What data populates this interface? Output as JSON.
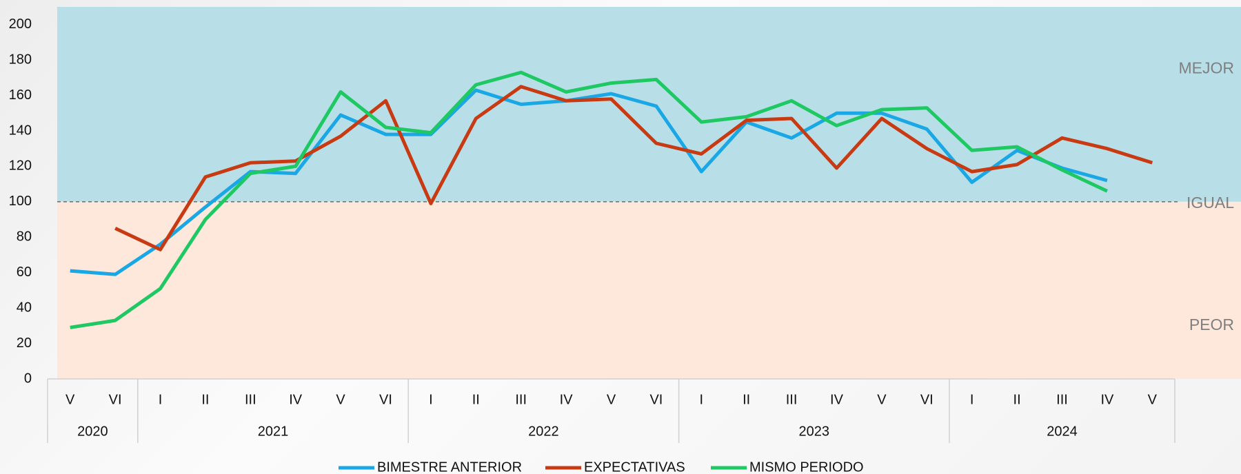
{
  "chart_data": {
    "type": "line",
    "category_groups": [
      {
        "label": "2020",
        "categories": [
          "V",
          "VI"
        ]
      },
      {
        "label": "2021",
        "categories": [
          "I",
          "II",
          "III",
          "IV",
          "V",
          "VI"
        ]
      },
      {
        "label": "2022",
        "categories": [
          "I",
          "II",
          "III",
          "IV",
          "V",
          "VI"
        ]
      },
      {
        "label": "2023",
        "categories": [
          "I",
          "II",
          "III",
          "IV",
          "V",
          "VI"
        ]
      },
      {
        "label": "2024",
        "categories": [
          "I",
          "II",
          "III",
          "IV",
          "V"
        ]
      }
    ],
    "series": [
      {
        "name": "BIMESTRE ANTERIOR",
        "color": "#1aa7e6",
        "values": [
          61,
          59,
          76,
          97,
          117,
          116,
          149,
          138,
          138,
          163,
          155,
          157,
          161,
          154,
          117,
          145,
          136,
          150,
          150,
          141,
          111,
          129,
          119,
          112,
          null
        ]
      },
      {
        "name": "EXPECTATIVAS",
        "color": "#c83a12",
        "values": [
          null,
          85,
          73,
          114,
          122,
          123,
          137,
          157,
          99,
          147,
          165,
          157,
          158,
          133,
          127,
          146,
          147,
          119,
          147,
          130,
          117,
          121,
          136,
          130,
          122
        ]
      },
      {
        "name": "MISMO PERIODO",
        "color": "#1ec862",
        "values": [
          29,
          33,
          51,
          90,
          116,
          120,
          162,
          142,
          139,
          166,
          173,
          162,
          167,
          169,
          145,
          148,
          157,
          143,
          152,
          153,
          129,
          131,
          118,
          106,
          null
        ]
      }
    ],
    "ylim": [
      0,
      210
    ],
    "yticks": [
      0,
      20,
      40,
      60,
      80,
      100,
      120,
      140,
      160,
      180,
      200
    ],
    "bands": [
      {
        "label": "MEJOR",
        "from": 100,
        "to": 210,
        "color": "#b8dfe8"
      },
      {
        "label": "PEOR",
        "from": 0,
        "to": 100,
        "color": "#fde8db"
      }
    ],
    "reference_line": {
      "value": 100,
      "label": "IGUAL"
    },
    "legend": "bottom"
  }
}
